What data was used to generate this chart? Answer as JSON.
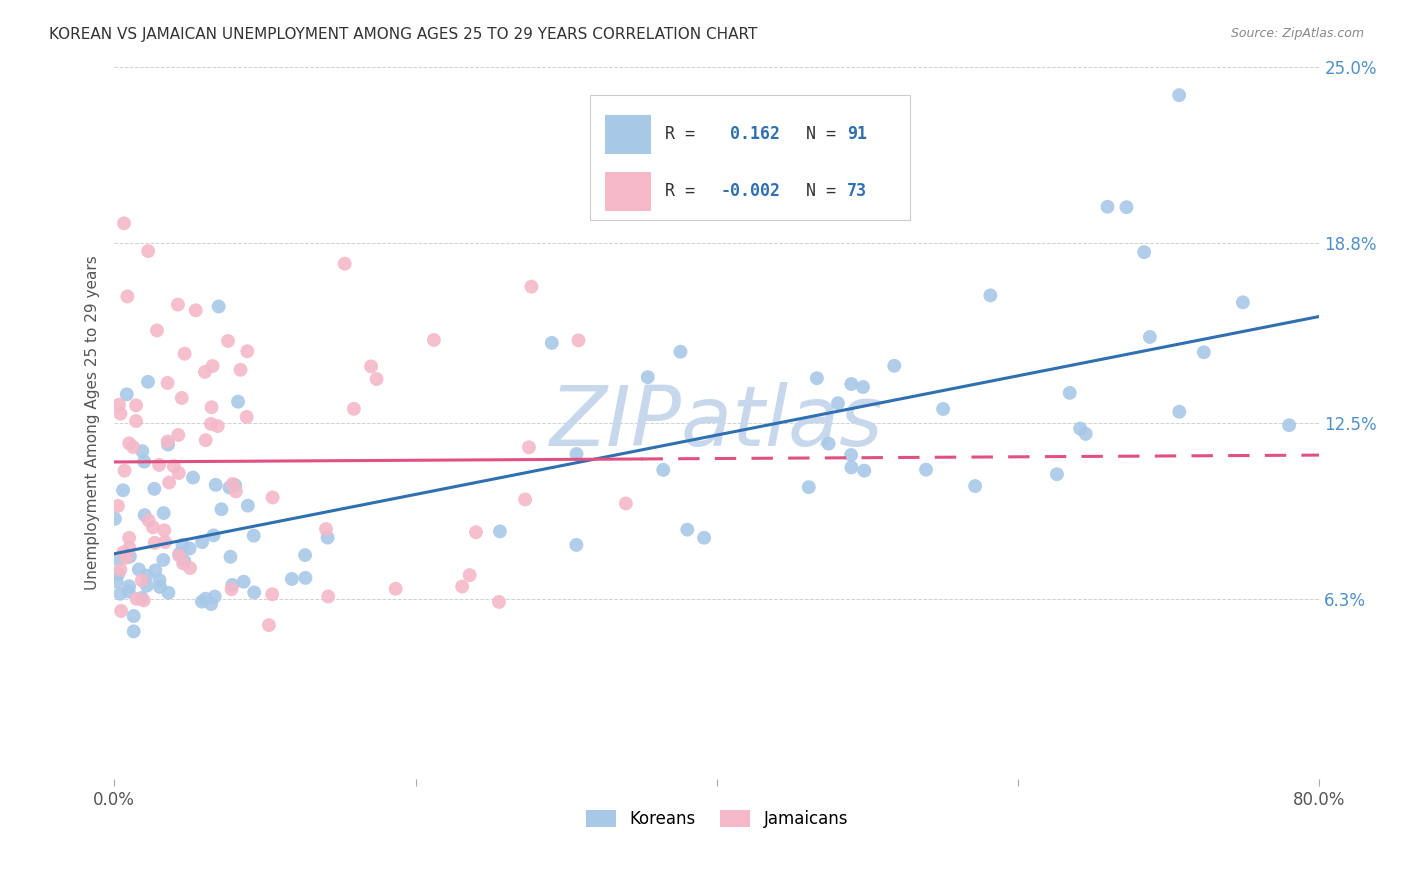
{
  "title": "KOREAN VS JAMAICAN UNEMPLOYMENT AMONG AGES 25 TO 29 YEARS CORRELATION CHART",
  "source": "Source: ZipAtlas.com",
  "ylabel": "Unemployment Among Ages 25 to 29 years",
  "xlim": [
    0.0,
    0.8
  ],
  "ylim": [
    0.0,
    0.25
  ],
  "yticks": [
    0.063,
    0.125,
    0.188,
    0.25
  ],
  "ytick_labels": [
    "6.3%",
    "12.5%",
    "18.8%",
    "25.0%"
  ],
  "korean_R": 0.162,
  "korean_N": 91,
  "jamaican_R": -0.002,
  "jamaican_N": 73,
  "korean_color": "#a8c8e8",
  "jamaican_color": "#f4b8c8",
  "korean_line_color": "#3070b0",
  "jamaican_line_color": "#e05080",
  "background_color": "#ffffff",
  "watermark": "ZIPatlas",
  "watermark_color": "#c8d8ec",
  "legend_label_korean": "Koreans",
  "legend_label_jamaican": "Jamaicans",
  "ytick_color": "#5090c8",
  "xtick_color": "#555555",
  "title_color": "#333333",
  "source_color": "#888888",
  "ylabel_color": "#555555",
  "grid_color": "#cccccc",
  "legend_text_color": "#333333",
  "legend_value_color": "#3070b0"
}
